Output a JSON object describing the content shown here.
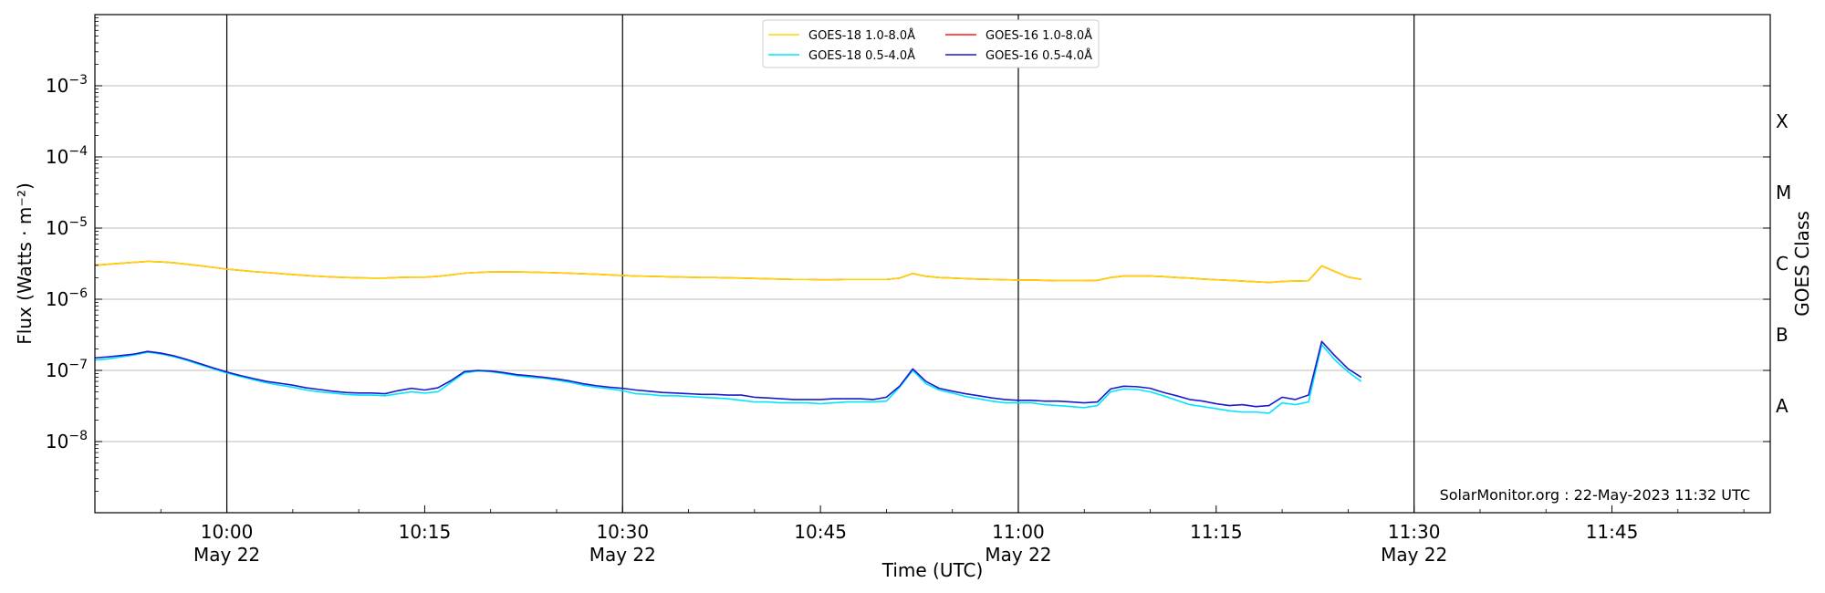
{
  "chart_data": {
    "type": "line",
    "title": "",
    "xlabel": "Time (UTC)",
    "ylabel": "Flux (Watts · m⁻²)",
    "y2label": "GOES Class",
    "yscale": "log",
    "ylim": [
      1e-09,
      0.01
    ],
    "xlim": [
      "09:50",
      "11:57"
    ],
    "grid": "horizontal",
    "legend_position": "top-center",
    "credit": "SolarMonitor.org : 22-May-2023 11:32 UTC",
    "yticks": [
      {
        "exp": -8,
        "value": 1e-08
      },
      {
        "exp": -7,
        "value": 1e-07
      },
      {
        "exp": -6,
        "value": 1e-06
      },
      {
        "exp": -5,
        "value": 1e-05
      },
      {
        "exp": -4,
        "value": 0.0001
      },
      {
        "exp": -3,
        "value": 0.001
      }
    ],
    "xticks": [
      {
        "time": "10:00",
        "label": "10:00",
        "sublabel": "May 22",
        "major": true
      },
      {
        "time": "10:15",
        "label": "10:15",
        "sublabel": "",
        "major": false
      },
      {
        "time": "10:30",
        "label": "10:30",
        "sublabel": "May 22",
        "major": true
      },
      {
        "time": "10:45",
        "label": "10:45",
        "sublabel": "",
        "major": false
      },
      {
        "time": "11:00",
        "label": "11:00",
        "sublabel": "May 22",
        "major": true
      },
      {
        "time": "11:15",
        "label": "11:15",
        "sublabel": "",
        "major": false
      },
      {
        "time": "11:30",
        "label": "11:30",
        "sublabel": "May 22",
        "major": true
      },
      {
        "time": "11:45",
        "label": "11:45",
        "sublabel": "",
        "major": false
      }
    ],
    "goes_classes": [
      {
        "label": "A",
        "value": 3.16e-08
      },
      {
        "label": "B",
        "value": 3.16e-07
      },
      {
        "label": "C",
        "value": 3.16e-06
      },
      {
        "label": "M",
        "value": 3.16e-05
      },
      {
        "label": "X",
        "value": 0.000316
      }
    ],
    "times": [
      "09:50",
      "09:51",
      "09:52",
      "09:53",
      "09:54",
      "09:55",
      "09:56",
      "09:57",
      "09:58",
      "09:59",
      "10:00",
      "10:01",
      "10:02",
      "10:03",
      "10:04",
      "10:05",
      "10:06",
      "10:07",
      "10:08",
      "10:09",
      "10:10",
      "10:11",
      "10:12",
      "10:13",
      "10:14",
      "10:15",
      "10:16",
      "10:17",
      "10:18",
      "10:19",
      "10:20",
      "10:21",
      "10:22",
      "10:23",
      "10:24",
      "10:25",
      "10:26",
      "10:27",
      "10:28",
      "10:29",
      "10:30",
      "10:31",
      "10:32",
      "10:33",
      "10:34",
      "10:35",
      "10:36",
      "10:37",
      "10:38",
      "10:39",
      "10:40",
      "10:41",
      "10:42",
      "10:43",
      "10:44",
      "10:45",
      "10:46",
      "10:47",
      "10:48",
      "10:49",
      "10:50",
      "10:51",
      "10:52",
      "10:53",
      "10:54",
      "10:55",
      "10:56",
      "10:57",
      "10:58",
      "10:59",
      "11:00",
      "11:01",
      "11:02",
      "11:03",
      "11:04",
      "11:05",
      "11:06",
      "11:07",
      "11:08",
      "11:09",
      "11:10",
      "11:11",
      "11:12",
      "11:13",
      "11:14",
      "11:15",
      "11:16",
      "11:17",
      "11:18",
      "11:19",
      "11:20",
      "11:21",
      "11:22",
      "11:23",
      "11:24",
      "11:25",
      "11:26"
    ],
    "series": [
      {
        "name": "GOES-18 1.0-8.0Å",
        "color": "#ffd700",
        "values": [
          3e-06,
          3.1e-06,
          3.2e-06,
          3.3e-06,
          3.4e-06,
          3.35e-06,
          3.25e-06,
          3.1e-06,
          2.95e-06,
          2.8e-06,
          2.65e-06,
          2.55e-06,
          2.45e-06,
          2.38e-06,
          2.3e-06,
          2.22e-06,
          2.16e-06,
          2.1e-06,
          2.06e-06,
          2.02e-06,
          2e-06,
          1.98e-06,
          1.98e-06,
          2.02e-06,
          2.04e-06,
          2.04e-06,
          2.1e-06,
          2.2e-06,
          2.32e-06,
          2.38e-06,
          2.42e-06,
          2.43e-06,
          2.42e-06,
          2.4e-06,
          2.38e-06,
          2.35e-06,
          2.32e-06,
          2.28e-06,
          2.25e-06,
          2.2e-06,
          2.16e-06,
          2.12e-06,
          2.1e-06,
          2.08e-06,
          2.06e-06,
          2.04e-06,
          2.02e-06,
          2.02e-06,
          2e-06,
          1.98e-06,
          1.96e-06,
          1.94e-06,
          1.92e-06,
          1.9e-06,
          1.9e-06,
          1.88e-06,
          1.88e-06,
          1.9e-06,
          1.9e-06,
          1.9e-06,
          1.9e-06,
          1.98e-06,
          2.3e-06,
          2.1e-06,
          2.02e-06,
          1.98e-06,
          1.95e-06,
          1.92e-06,
          1.9e-06,
          1.88e-06,
          1.86e-06,
          1.86e-06,
          1.84e-06,
          1.82e-06,
          1.82e-06,
          1.82e-06,
          1.84e-06,
          2.02e-06,
          2.12e-06,
          2.12e-06,
          2.12e-06,
          2.08e-06,
          2.02e-06,
          1.98e-06,
          1.92e-06,
          1.88e-06,
          1.84e-06,
          1.8e-06,
          1.76e-06,
          1.72e-06,
          1.78e-06,
          1.8e-06,
          1.82e-06,
          2.95e-06,
          2.45e-06,
          2.05e-06,
          1.9e-06
        ]
      },
      {
        "name": "GOES-18 0.5-4.0Å",
        "color": "#00e5ff",
        "values": [
          1.4e-07,
          1.45e-07,
          1.55e-07,
          1.65e-07,
          1.8e-07,
          1.7e-07,
          1.55e-07,
          1.38e-07,
          1.2e-07,
          1.05e-07,
          9.2e-08,
          8.2e-08,
          7.4e-08,
          6.7e-08,
          6.2e-08,
          5.8e-08,
          5.3e-08,
          5e-08,
          4.8e-08,
          4.6e-08,
          4.5e-08,
          4.5e-08,
          4.4e-08,
          4.7e-08,
          5e-08,
          4.8e-08,
          5e-08,
          6.8e-08,
          9.2e-08,
          9.8e-08,
          9.6e-08,
          9e-08,
          8.4e-08,
          8e-08,
          7.8e-08,
          7.3e-08,
          6.8e-08,
          6.2e-08,
          5.8e-08,
          5.5e-08,
          5.2e-08,
          4.7e-08,
          4.6e-08,
          4.4e-08,
          4.4e-08,
          4.3e-08,
          4.2e-08,
          4.1e-08,
          4e-08,
          3.8e-08,
          3.6e-08,
          3.6e-08,
          3.5e-08,
          3.5e-08,
          3.5e-08,
          3.4e-08,
          3.5e-08,
          3.6e-08,
          3.6e-08,
          3.6e-08,
          3.7e-08,
          5.8e-08,
          1e-07,
          6.5e-08,
          5.3e-08,
          4.8e-08,
          4.3e-08,
          4e-08,
          3.7e-08,
          3.5e-08,
          3.5e-08,
          3.5e-08,
          3.3e-08,
          3.2e-08,
          3.1e-08,
          3e-08,
          3.2e-08,
          5e-08,
          5.5e-08,
          5.4e-08,
          5e-08,
          4.4e-08,
          3.8e-08,
          3.3e-08,
          3.1e-08,
          2.9e-08,
          2.7e-08,
          2.6e-08,
          2.6e-08,
          2.5e-08,
          3.5e-08,
          3.3e-08,
          3.6e-08,
          2.3e-07,
          1.4e-07,
          9.5e-08,
          7e-08
        ]
      },
      {
        "name": "GOES-16 1.0-8.0Å",
        "color": "#ff1a1a",
        "values": [
          3e-06,
          3.1e-06,
          3.2e-06,
          3.3e-06,
          3.4e-06,
          3.35e-06,
          3.25e-06,
          3.1e-06,
          2.95e-06,
          2.8e-06,
          2.65e-06,
          2.55e-06,
          2.45e-06,
          2.38e-06,
          2.3e-06,
          2.22e-06,
          2.16e-06,
          2.1e-06,
          2.06e-06,
          2.02e-06,
          2e-06,
          1.98e-06,
          1.98e-06,
          2.02e-06,
          2.04e-06,
          2.04e-06,
          2.1e-06,
          2.2e-06,
          2.32e-06,
          2.38e-06,
          2.42e-06,
          2.43e-06,
          2.42e-06,
          2.4e-06,
          2.38e-06,
          2.35e-06,
          2.32e-06,
          2.28e-06,
          2.25e-06,
          2.2e-06,
          2.16e-06,
          2.12e-06,
          2.1e-06,
          2.08e-06,
          2.06e-06,
          2.04e-06,
          2.02e-06,
          2.02e-06,
          2e-06,
          1.98e-06,
          1.96e-06,
          1.94e-06,
          1.92e-06,
          1.9e-06,
          1.9e-06,
          1.88e-06,
          1.88e-06,
          1.9e-06,
          1.9e-06,
          1.9e-06,
          1.9e-06,
          1.98e-06,
          2.3e-06,
          2.1e-06,
          2.02e-06,
          1.98e-06,
          1.95e-06,
          1.92e-06,
          1.9e-06,
          1.88e-06,
          1.86e-06,
          1.86e-06,
          1.84e-06,
          1.82e-06,
          1.82e-06,
          1.82e-06,
          1.84e-06,
          2.02e-06,
          2.12e-06,
          2.12e-06,
          2.12e-06,
          2.08e-06,
          2.02e-06,
          1.98e-06,
          1.92e-06,
          1.88e-06,
          1.84e-06,
          1.8e-06,
          1.76e-06,
          1.72e-06,
          1.78e-06,
          1.8e-06,
          1.82e-06,
          2.95e-06,
          2.45e-06,
          2.05e-06,
          1.9e-06
        ]
      },
      {
        "name": "GOES-16 0.5-4.0Å",
        "color": "#1a1acc",
        "values": [
          1.5e-07,
          1.55e-07,
          1.62e-07,
          1.7e-07,
          1.85e-07,
          1.75e-07,
          1.6e-07,
          1.42e-07,
          1.24e-07,
          1.08e-07,
          9.5e-08,
          8.5e-08,
          7.7e-08,
          7e-08,
          6.6e-08,
          6.2e-08,
          5.7e-08,
          5.4e-08,
          5.1e-08,
          4.9e-08,
          4.8e-08,
          4.8e-08,
          4.7e-08,
          5.2e-08,
          5.6e-08,
          5.3e-08,
          5.7e-08,
          7.2e-08,
          9.6e-08,
          1e-07,
          9.8e-08,
          9.3e-08,
          8.7e-08,
          8.4e-08,
          8e-08,
          7.6e-08,
          7.1e-08,
          6.5e-08,
          6.1e-08,
          5.8e-08,
          5.6e-08,
          5.3e-08,
          5.1e-08,
          4.9e-08,
          4.8e-08,
          4.7e-08,
          4.6e-08,
          4.6e-08,
          4.5e-08,
          4.5e-08,
          4.2e-08,
          4.1e-08,
          4e-08,
          3.9e-08,
          3.9e-08,
          3.9e-08,
          4e-08,
          4e-08,
          4e-08,
          3.9e-08,
          4.2e-08,
          6e-08,
          1.05e-07,
          7e-08,
          5.6e-08,
          5.1e-08,
          4.7e-08,
          4.4e-08,
          4.1e-08,
          3.9e-08,
          3.8e-08,
          3.8e-08,
          3.7e-08,
          3.7e-08,
          3.6e-08,
          3.5e-08,
          3.6e-08,
          5.5e-08,
          6e-08,
          5.9e-08,
          5.6e-08,
          4.9e-08,
          4.4e-08,
          3.9e-08,
          3.7e-08,
          3.4e-08,
          3.2e-08,
          3.3e-08,
          3.1e-08,
          3.2e-08,
          4.2e-08,
          3.9e-08,
          4.5e-08,
          2.55e-07,
          1.6e-07,
          1.05e-07,
          8e-08
        ]
      }
    ],
    "legend_order": [
      0,
      1,
      2,
      3
    ]
  }
}
